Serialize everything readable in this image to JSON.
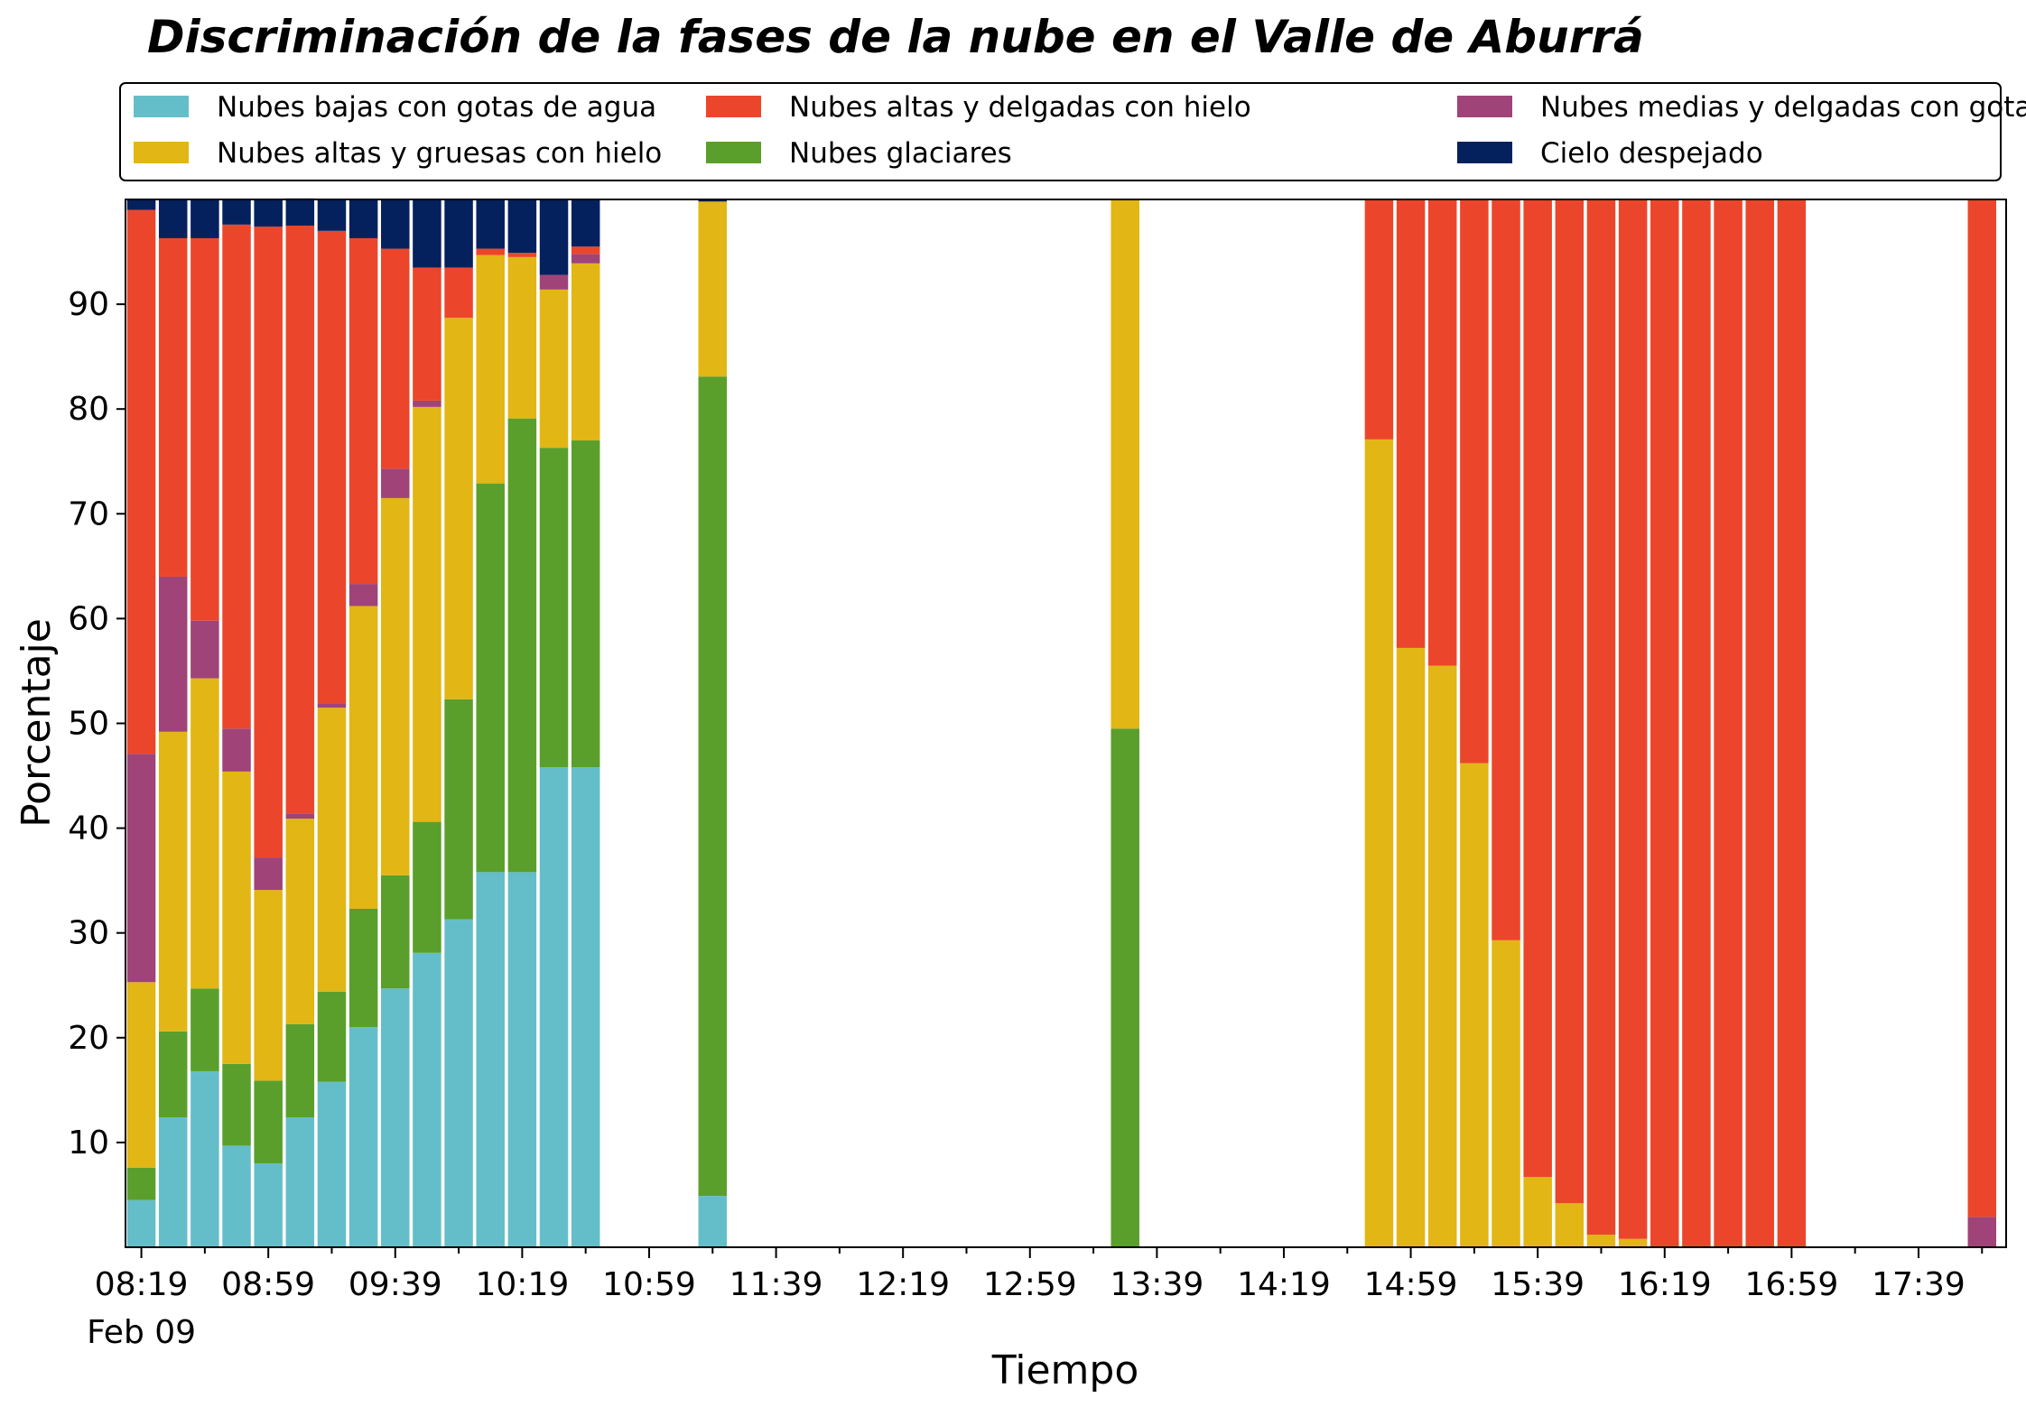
{
  "chart_data": {
    "type": "bar",
    "stacked": true,
    "title": "Discriminación de la fases de la nube en el Valle de Aburrá",
    "xlabel": "Tiempo",
    "ylabel": "Porcentaje",
    "ylim": [
      0,
      100
    ],
    "y_ticks": [
      10,
      20,
      30,
      40,
      50,
      60,
      70,
      80,
      90
    ],
    "x_tick_labels": [
      "08:19",
      "08:59",
      "09:39",
      "10:19",
      "10:59",
      "11:39",
      "12:19",
      "12:59",
      "13:39",
      "14:19",
      "14:59",
      "15:39",
      "16:19",
      "16:59",
      "17:39"
    ],
    "x_date_label": "Feb 09",
    "slot_minutes": 10,
    "grid": false,
    "legend": {
      "placement": "top",
      "ncol": 3
    },
    "series": [
      {
        "name": "Nubes bajas con gotas de agua",
        "color": "#64BEC9"
      },
      {
        "name": "Nubes glaciares",
        "color": "#5A9F2B"
      },
      {
        "name": "Nubes altas y gruesas con hielo",
        "color": "#E2B614"
      },
      {
        "name": "Nubes medias y delgadas con gotas de agua",
        "color": "#A04378"
      },
      {
        "name": "Nubes altas y delgadas con hielo",
        "color": "#EB462B"
      },
      {
        "name": "Cielo despejado",
        "color": "#04215E"
      }
    ],
    "legend_order": [
      0,
      2,
      4,
      1,
      3,
      5
    ],
    "bars": [
      {
        "time": "08:19",
        "values": [
          4.5,
          3.1,
          17.7,
          21.8,
          51.9,
          1.0
        ]
      },
      {
        "time": "08:29",
        "values": [
          12.4,
          8.2,
          28.6,
          14.8,
          32.3,
          3.7
        ]
      },
      {
        "time": "08:39",
        "values": [
          16.8,
          7.9,
          29.6,
          5.5,
          36.5,
          3.7
        ]
      },
      {
        "time": "08:49",
        "values": [
          9.7,
          7.8,
          27.9,
          4.1,
          48.1,
          2.4
        ]
      },
      {
        "time": "08:59",
        "values": [
          8.0,
          7.9,
          18.2,
          3.1,
          60.2,
          2.6
        ]
      },
      {
        "time": "09:09",
        "values": [
          12.4,
          8.9,
          19.6,
          0.5,
          56.1,
          2.6
        ]
      },
      {
        "time": "09:19",
        "values": [
          15.8,
          8.6,
          27.1,
          0.4,
          45.1,
          3.0
        ]
      },
      {
        "time": "09:29",
        "values": [
          21.0,
          11.3,
          28.9,
          2.1,
          33.0,
          3.7
        ]
      },
      {
        "time": "09:39",
        "values": [
          24.7,
          10.8,
          36.0,
          2.8,
          21.0,
          4.7
        ]
      },
      {
        "time": "09:49",
        "values": [
          28.1,
          12.5,
          39.6,
          0.6,
          12.7,
          6.5
        ]
      },
      {
        "time": "09:59",
        "values": [
          31.3,
          21.0,
          36.4,
          0.0,
          4.8,
          6.5
        ]
      },
      {
        "time": "10:09",
        "values": [
          35.8,
          37.1,
          21.8,
          0.0,
          0.6,
          4.7
        ]
      },
      {
        "time": "10:19",
        "values": [
          35.8,
          43.3,
          15.4,
          0.0,
          0.4,
          5.1
        ]
      },
      {
        "time": "10:29",
        "values": [
          45.8,
          30.5,
          15.1,
          1.4,
          0.0,
          7.2
        ]
      },
      {
        "time": "10:39",
        "values": [
          45.8,
          31.2,
          16.9,
          0.9,
          0.7,
          4.5
        ]
      },
      {
        "time": "11:19",
        "values": [
          4.9,
          78.2,
          16.7,
          0.0,
          0.0,
          0.2
        ]
      },
      {
        "time": "13:29",
        "values": [
          0,
          49.5,
          50.5,
          0,
          0,
          0
        ]
      },
      {
        "time": "14:49",
        "values": [
          0,
          0,
          77.1,
          0,
          22.9,
          0
        ]
      },
      {
        "time": "14:59",
        "values": [
          0,
          0,
          57.2,
          0,
          42.8,
          0
        ]
      },
      {
        "time": "15:09",
        "values": [
          0,
          0,
          55.5,
          0,
          44.5,
          0
        ]
      },
      {
        "time": "15:19",
        "values": [
          0,
          0,
          46.2,
          0,
          53.8,
          0
        ]
      },
      {
        "time": "15:29",
        "values": [
          0,
          0,
          29.3,
          0,
          70.7,
          0
        ]
      },
      {
        "time": "15:39",
        "values": [
          0,
          0,
          6.7,
          0,
          93.3,
          0
        ]
      },
      {
        "time": "15:49",
        "values": [
          0,
          0,
          4.2,
          0,
          95.8,
          0
        ]
      },
      {
        "time": "15:59",
        "values": [
          0,
          0,
          1.2,
          0,
          98.8,
          0
        ]
      },
      {
        "time": "16:09",
        "values": [
          0,
          0,
          0.8,
          0,
          99.2,
          0
        ]
      },
      {
        "time": "16:19",
        "values": [
          0,
          0,
          0,
          0,
          100,
          0
        ]
      },
      {
        "time": "16:29",
        "values": [
          0,
          0,
          0,
          0,
          100,
          0
        ]
      },
      {
        "time": "16:39",
        "values": [
          0,
          0,
          0,
          0,
          100,
          0
        ]
      },
      {
        "time": "16:49",
        "values": [
          0,
          0,
          0,
          0,
          100,
          0
        ]
      },
      {
        "time": "16:59",
        "values": [
          0,
          0,
          0,
          0,
          100,
          0
        ]
      },
      {
        "time": "17:59",
        "values": [
          0,
          0,
          0,
          2.9,
          97.1,
          0
        ]
      }
    ]
  }
}
